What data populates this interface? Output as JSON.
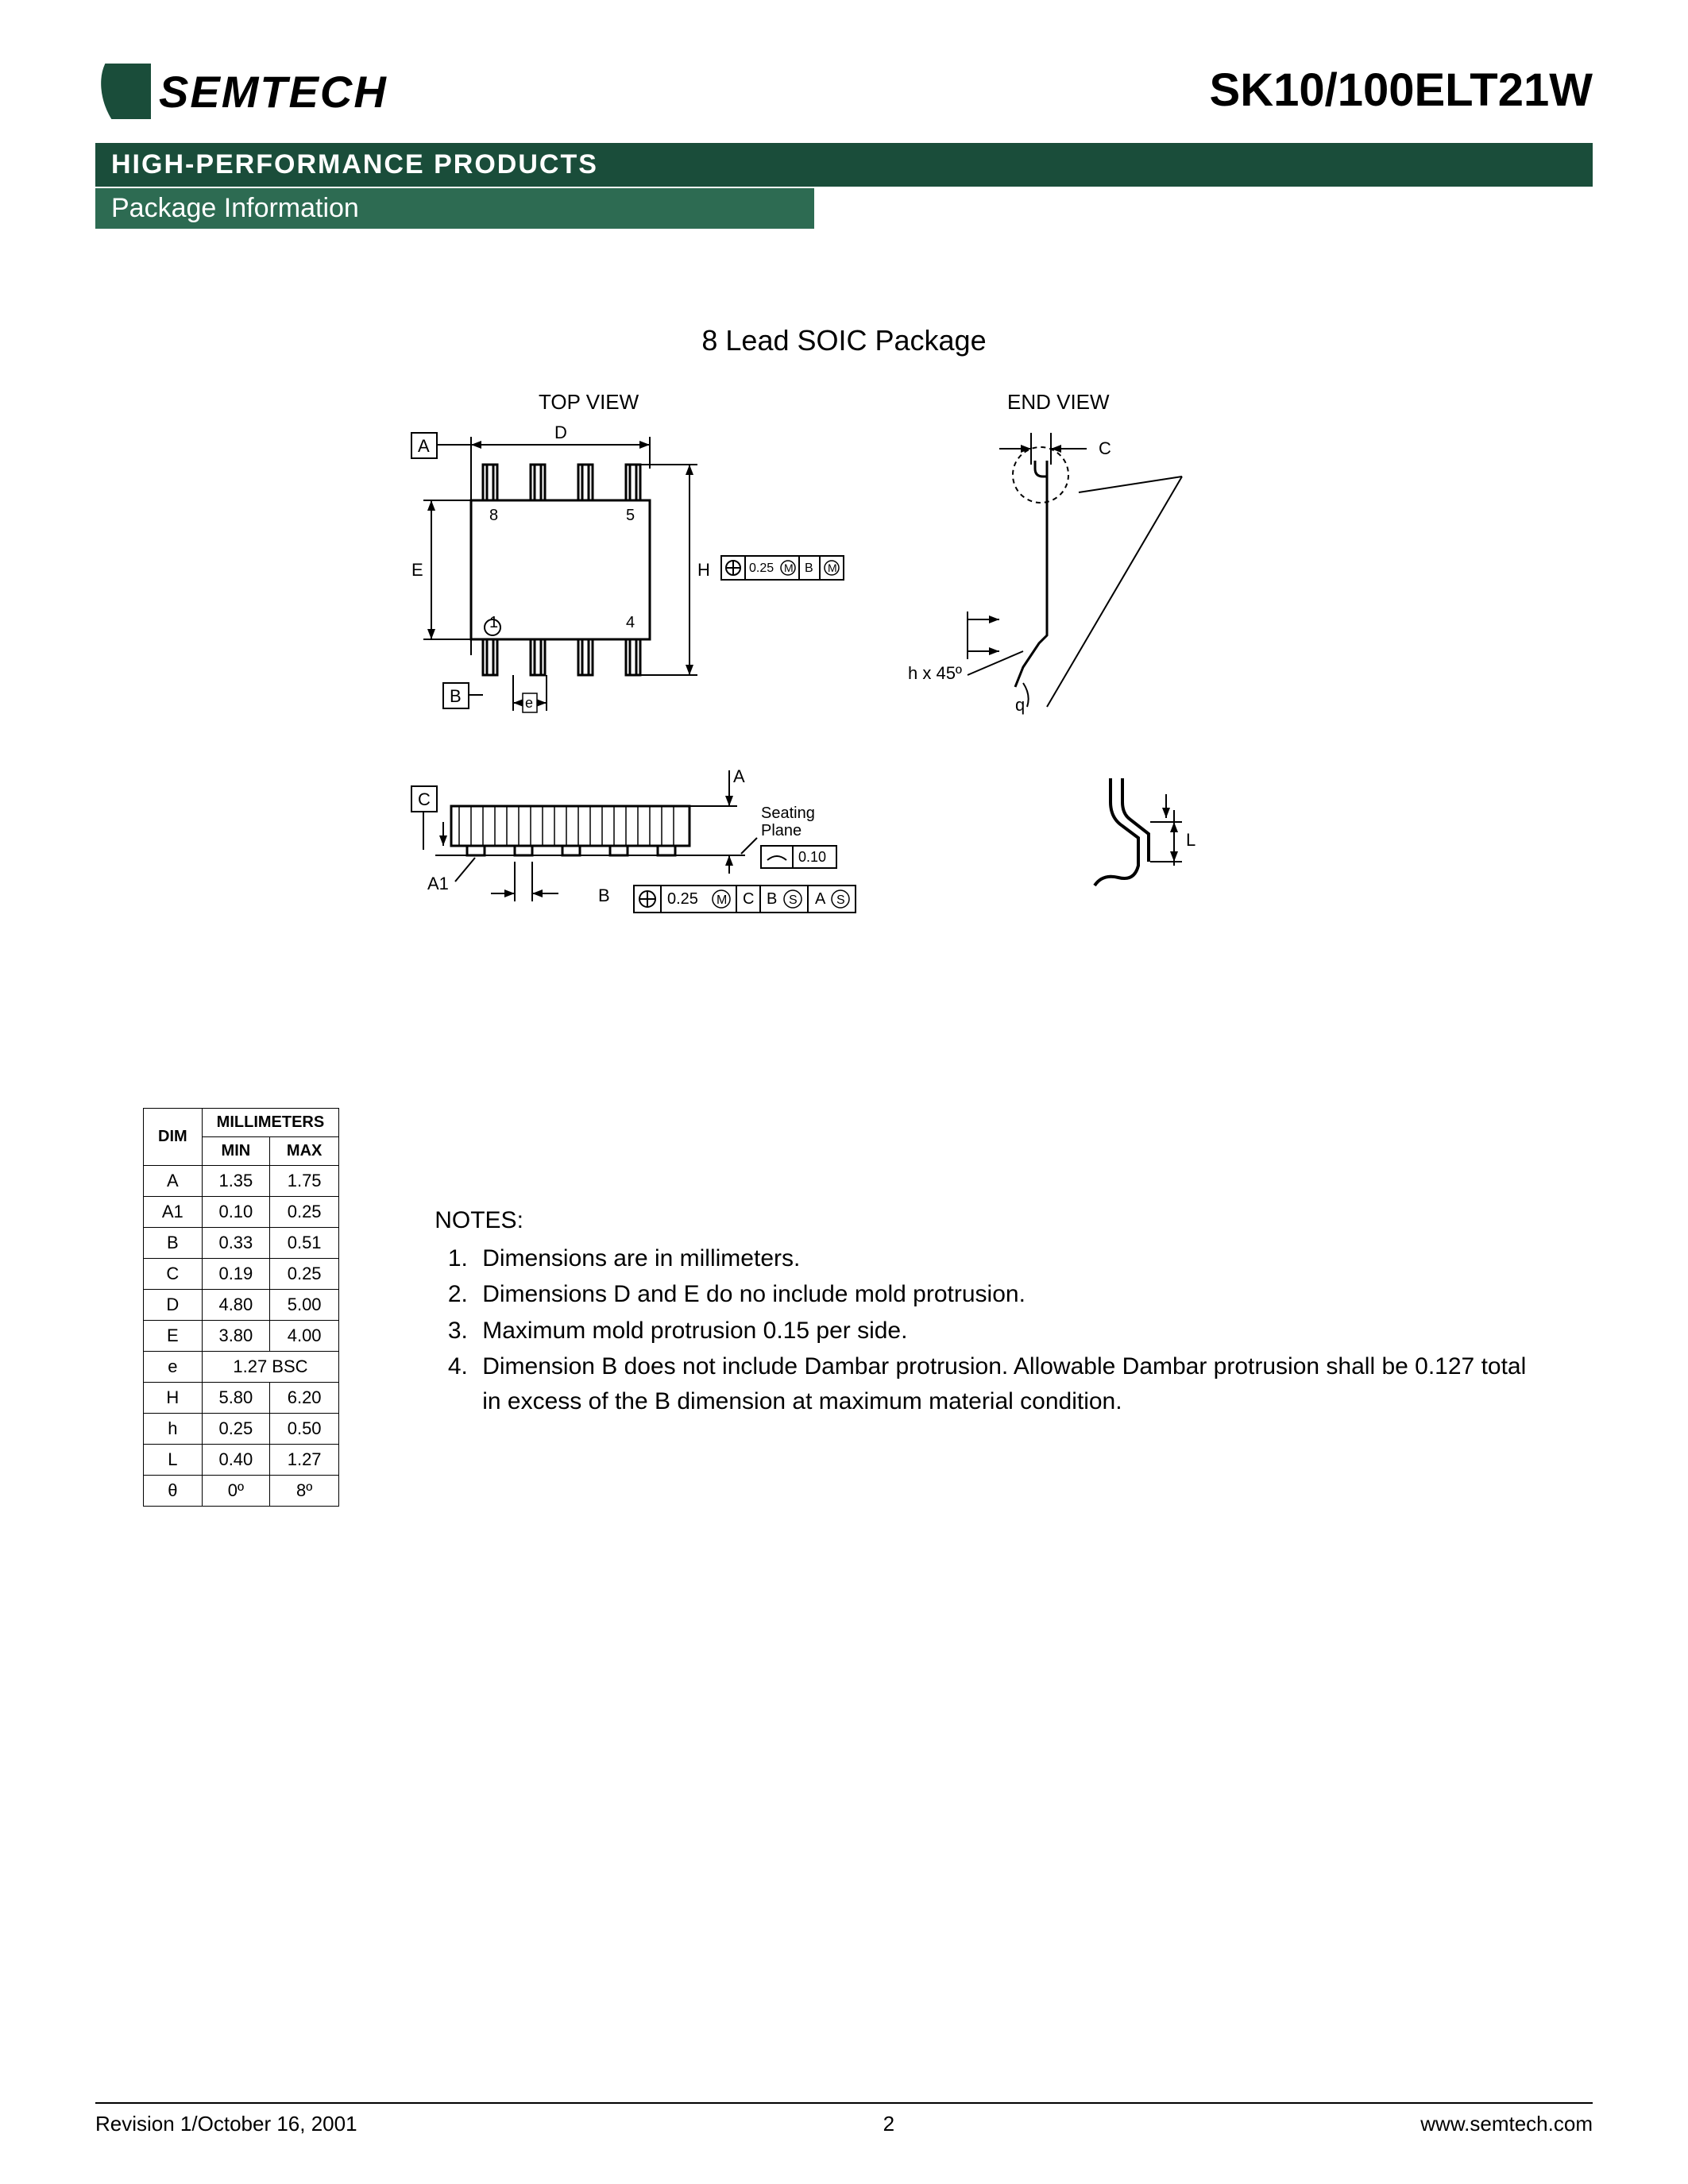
{
  "header": {
    "company": "SEMTECH",
    "part_number": "SK10/100ELT21W",
    "banner_main": "HIGH-PERFORMANCE PRODUCTS",
    "banner_sub": "Package Information"
  },
  "colors": {
    "brand_dark": "#1a4d3a",
    "brand_light": "#2d6b52",
    "text": "#000000",
    "bg": "#ffffff"
  },
  "section_title": "8 Lead SOIC Package",
  "diagram": {
    "top_view_label": "TOP VIEW",
    "end_view_label": "END VIEW",
    "labels": {
      "A": "A",
      "B": "B",
      "C": "C",
      "D": "D",
      "E": "E",
      "H": "H",
      "e": "e",
      "A1": "A1",
      "L": "L",
      "h": "h",
      "q": "q",
      "seating_plane": "Seating\nPlane",
      "angle_label": "h x 45º",
      "pin1": "1",
      "pin4": "4",
      "pin5": "5",
      "pin8": "8",
      "tol1": "0.25",
      "tol1_b": "B",
      "tol2": "0.10",
      "tol3": "0.25",
      "tol3_c": "C",
      "tol3_b": "B",
      "tol3_a": "A"
    }
  },
  "dim_table": {
    "header_units": "MILLIMETERS",
    "header_dim": "DIM",
    "header_min": "MIN",
    "header_max": "MAX",
    "rows": [
      {
        "dim": "A",
        "min": "1.35",
        "max": "1.75"
      },
      {
        "dim": "A1",
        "min": "0.10",
        "max": "0.25"
      },
      {
        "dim": "B",
        "min": "0.33",
        "max": "0.51"
      },
      {
        "dim": "C",
        "min": "0.19",
        "max": "0.25"
      },
      {
        "dim": "D",
        "min": "4.80",
        "max": "5.00"
      },
      {
        "dim": "E",
        "min": "3.80",
        "max": "4.00"
      },
      {
        "dim": "e",
        "span": "1.27   BSC"
      },
      {
        "dim": "H",
        "min": "5.80",
        "max": "6.20"
      },
      {
        "dim": "h",
        "min": "0.25",
        "max": "0.50"
      },
      {
        "dim": "L",
        "min": "0.40",
        "max": "1.27"
      },
      {
        "dim": "θ",
        "min": "0º",
        "max": "8º"
      }
    ]
  },
  "notes": {
    "title": "NOTES:",
    "items": [
      "Dimensions are in millimeters.",
      "Dimensions D and E do no include mold protrusion.",
      "Maximum mold protrusion 0.15 per side.",
      "Dimension B does not include Dambar protrusion. Allowable Dambar protrusion shall be 0.127 total in excess of the B dimension at maximum material condition."
    ]
  },
  "footer": {
    "revision": "Revision 1/October 16, 2001",
    "page": "2",
    "url": "www.semtech.com"
  }
}
